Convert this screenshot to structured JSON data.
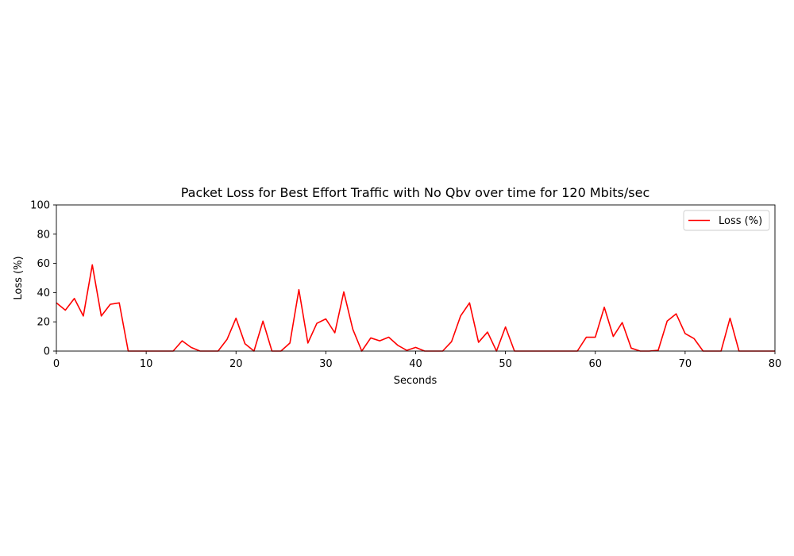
{
  "chart_data": {
    "type": "line",
    "title": "Packet Loss for Best Effort Traffic with No Qbv over time for 120 Mbits/sec",
    "xlabel": "Seconds",
    "ylabel": "Loss (%)",
    "xlim": [
      0,
      80
    ],
    "ylim": [
      0,
      100
    ],
    "xticks": [
      0,
      10,
      20,
      30,
      40,
      50,
      60,
      70,
      80
    ],
    "yticks": [
      0,
      20,
      40,
      60,
      80,
      100
    ],
    "grid": false,
    "legend_position": "top-right",
    "series": [
      {
        "name": "Loss (%)",
        "color": "#ff0000",
        "x": [
          0,
          1,
          2,
          3,
          4,
          5,
          6,
          7,
          8,
          9,
          10,
          11,
          12,
          13,
          14,
          15,
          16,
          17,
          18,
          19,
          20,
          21,
          22,
          23,
          24,
          25,
          26,
          27,
          28,
          29,
          30,
          31,
          32,
          33,
          34,
          35,
          36,
          37,
          38,
          39,
          40,
          41,
          42,
          43,
          44,
          45,
          46,
          47,
          48,
          49,
          50,
          51,
          52,
          53,
          54,
          55,
          56,
          57,
          58,
          59,
          60,
          61,
          62,
          63,
          64,
          65,
          66,
          67,
          68,
          69,
          70,
          71,
          72,
          73,
          74,
          75,
          76,
          77,
          78,
          79,
          80
        ],
        "y": [
          33,
          28,
          36,
          24,
          59,
          24,
          32,
          33,
          0,
          0,
          0,
          0,
          0,
          0,
          7,
          2.5,
          0,
          0,
          0,
          8,
          22.5,
          5,
          0,
          20.5,
          0,
          0,
          5.5,
          42,
          5.5,
          19,
          22,
          12.5,
          40.5,
          15,
          0,
          9,
          7,
          9.5,
          4,
          0.5,
          2.5,
          0,
          0,
          0,
          6.5,
          24,
          33,
          6,
          13,
          0,
          16.5,
          0,
          0,
          0,
          0,
          0,
          0,
          0,
          0,
          9.5,
          9.5,
          30,
          10,
          19.5,
          2,
          0,
          0,
          0.5,
          20.5,
          25.5,
          12,
          8.5,
          0,
          0,
          0,
          22.5,
          0,
          0,
          0,
          0,
          0
        ]
      }
    ]
  }
}
